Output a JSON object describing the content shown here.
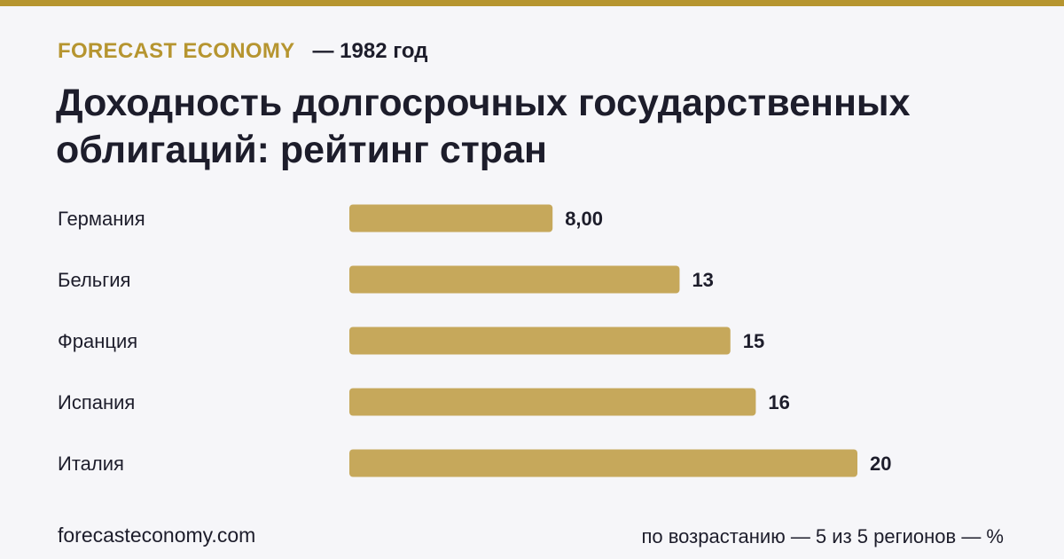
{
  "header": {
    "brand": "FORECAST ECONOMY",
    "year_label": "— 1982 год"
  },
  "colors": {
    "accent": "#b69530",
    "bar": "#c6a85b",
    "text": "#1d1d2b",
    "background": "#f6f6f9"
  },
  "chart_data": {
    "type": "bar",
    "orientation": "horizontal",
    "title": "Доходность долгосрочных государственных облигаций: рейтинг стран",
    "categories": [
      "Германия",
      "Бельгия",
      "Франция",
      "Испания",
      "Италия"
    ],
    "values": [
      8,
      13,
      15,
      16,
      20
    ],
    "value_labels": [
      "8,00",
      "13",
      "15",
      "16",
      "20"
    ],
    "xlim": [
      0,
      20
    ],
    "grid": false,
    "legend": "none"
  },
  "footer": {
    "site": "forecasteconomy.com",
    "note": "по возрастанию — 5 из 5 регионов — %"
  }
}
